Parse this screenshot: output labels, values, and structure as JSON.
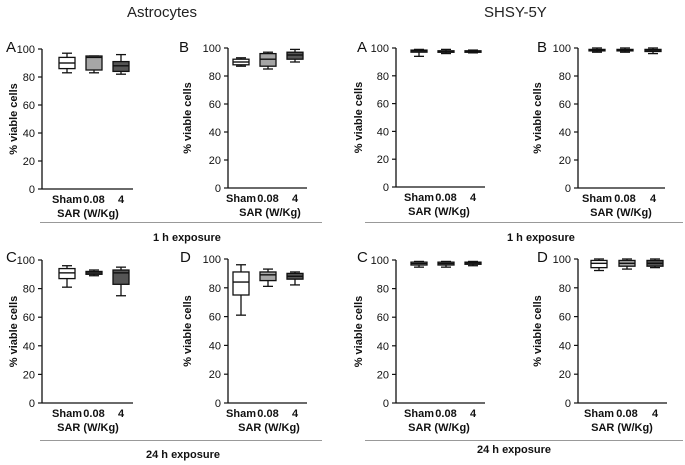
{
  "sections": {
    "left": "Astrocytes",
    "right": "SHSY-5Y"
  },
  "exposure_labels": {
    "top": "1 h exposure",
    "bottom": "24 h exposure"
  },
  "chart_data": [
    {
      "id": "astro-1h-A",
      "type": "boxplot",
      "panel_label": "A",
      "categories": [
        "Sham",
        "0.08",
        "4"
      ],
      "xlabel": "SAR (W/Kg)",
      "ylabel": "% viable cells",
      "ylim": [
        0,
        100
      ],
      "yticks": [
        0,
        20,
        40,
        60,
        80,
        100
      ],
      "fills": [
        "#ffffff",
        "#a6a6a6",
        "#555555"
      ],
      "boxes": [
        {
          "min": 83,
          "q1": 86,
          "median": 90,
          "q3": 94,
          "max": 97
        },
        {
          "min": 83,
          "q1": 85,
          "median": 94,
          "q3": 95,
          "max": 95
        },
        {
          "min": 82,
          "q1": 84,
          "median": 88,
          "q3": 91,
          "max": 96
        }
      ]
    },
    {
      "id": "astro-1h-B",
      "type": "boxplot",
      "panel_label": "B",
      "categories": [
        "Sham",
        "0.08",
        "4"
      ],
      "xlabel": "SAR (W/Kg)",
      "ylabel": "% viable cells",
      "ylim": [
        0,
        100
      ],
      "yticks": [
        0,
        20,
        40,
        60,
        80,
        100
      ],
      "fills": [
        "#ffffff",
        "#a6a6a6",
        "#555555"
      ],
      "boxes": [
        {
          "min": 87,
          "q1": 88,
          "median": 90,
          "q3": 92,
          "max": 93
        },
        {
          "min": 85,
          "q1": 87,
          "median": 92,
          "q3": 96,
          "max": 97
        },
        {
          "min": 90,
          "q1": 92,
          "median": 95,
          "q3": 97,
          "max": 99
        }
      ]
    },
    {
      "id": "shsy-1h-A",
      "type": "boxplot",
      "panel_label": "A",
      "categories": [
        "Sham",
        "0.08",
        "4"
      ],
      "xlabel": "SAR (W/Kg)",
      "ylabel": "% viable cells",
      "ylim": [
        0,
        100
      ],
      "yticks": [
        0,
        20,
        40,
        60,
        80,
        100
      ],
      "fills": [
        "#ffffff",
        "#a6a6a6",
        "#555555"
      ],
      "boxes": [
        {
          "min": 94,
          "q1": 97,
          "median": 98,
          "q3": 98.5,
          "max": 99
        },
        {
          "min": 96,
          "q1": 97,
          "median": 97.5,
          "q3": 98,
          "max": 99
        },
        {
          "min": 96.5,
          "q1": 97,
          "median": 97.5,
          "q3": 98,
          "max": 98.5
        }
      ]
    },
    {
      "id": "shsy-1h-B",
      "type": "boxplot",
      "panel_label": "B",
      "categories": [
        "Sham",
        "0.08",
        "4"
      ],
      "xlabel": "SAR (W/Kg)",
      "ylabel": "% viable cells",
      "ylim": [
        0,
        100
      ],
      "yticks": [
        0,
        20,
        40,
        60,
        80,
        100
      ],
      "fills": [
        "#ffffff",
        "#a6a6a6",
        "#555555"
      ],
      "boxes": [
        {
          "min": 97,
          "q1": 98,
          "median": 98.5,
          "q3": 99,
          "max": 100
        },
        {
          "min": 97,
          "q1": 98,
          "median": 98.5,
          "q3": 99,
          "max": 100
        },
        {
          "min": 96,
          "q1": 97.5,
          "median": 98.5,
          "q3": 99,
          "max": 100
        }
      ]
    },
    {
      "id": "astro-24h-C",
      "type": "boxplot",
      "panel_label": "C",
      "categories": [
        "Sham",
        "0.08",
        "4"
      ],
      "xlabel": "SAR (W/Kg)",
      "ylabel": "% viable cells",
      "ylim": [
        0,
        100
      ],
      "yticks": [
        0,
        20,
        40,
        60,
        80,
        100
      ],
      "fills": [
        "#ffffff",
        "#a6a6a6",
        "#555555"
      ],
      "boxes": [
        {
          "min": 81,
          "q1": 87,
          "median": 91,
          "q3": 94,
          "max": 96
        },
        {
          "min": 89,
          "q1": 90,
          "median": 91,
          "q3": 92,
          "max": 93
        },
        {
          "min": 75,
          "q1": 83,
          "median": 91,
          "q3": 93,
          "max": 95
        }
      ]
    },
    {
      "id": "astro-24h-D",
      "type": "boxplot",
      "panel_label": "D",
      "categories": [
        "Sham",
        "0.08",
        "4"
      ],
      "xlabel": "SAR (W/Kg)",
      "ylabel": "% viable cells",
      "ylim": [
        0,
        100
      ],
      "yticks": [
        0,
        20,
        40,
        60,
        80,
        100
      ],
      "fills": [
        "#ffffff",
        "#a6a6a6",
        "#555555"
      ],
      "boxes": [
        {
          "min": 61,
          "q1": 75,
          "median": 84,
          "q3": 91,
          "max": 96
        },
        {
          "min": 81,
          "q1": 85,
          "median": 89,
          "q3": 91,
          "max": 93
        },
        {
          "min": 82,
          "q1": 86,
          "median": 88,
          "q3": 90,
          "max": 91
        }
      ]
    },
    {
      "id": "shsy-24h-C",
      "type": "boxplot",
      "panel_label": "C",
      "categories": [
        "Sham",
        "0.08",
        "4"
      ],
      "xlabel": "SAR (W/Kg)",
      "ylabel": "% viable cells",
      "ylim": [
        0,
        100
      ],
      "yticks": [
        0,
        20,
        40,
        60,
        80,
        100
      ],
      "fills": [
        "#ffffff",
        "#a6a6a6",
        "#555555"
      ],
      "boxes": [
        {
          "min": 95,
          "q1": 96.5,
          "median": 97.5,
          "q3": 98.5,
          "max": 99
        },
        {
          "min": 95,
          "q1": 96.5,
          "median": 97.5,
          "q3": 98.5,
          "max": 99
        },
        {
          "min": 96,
          "q1": 97,
          "median": 98,
          "q3": 98.5,
          "max": 99
        }
      ]
    },
    {
      "id": "shsy-24h-D",
      "type": "boxplot",
      "panel_label": "D",
      "categories": [
        "Sham",
        "0.08",
        "4"
      ],
      "xlabel": "SAR (W/Kg)",
      "ylabel": "% viable cells",
      "ylim": [
        0,
        100
      ],
      "yticks": [
        0,
        20,
        40,
        60,
        80,
        100
      ],
      "fills": [
        "#ffffff",
        "#a6a6a6",
        "#555555"
      ],
      "boxes": [
        {
          "min": 92,
          "q1": 94,
          "median": 97,
          "q3": 99,
          "max": 100
        },
        {
          "min": 93,
          "q1": 95,
          "median": 97,
          "q3": 99,
          "max": 100
        },
        {
          "min": 94,
          "q1": 95,
          "median": 97,
          "q3": 99,
          "max": 100
        }
      ]
    }
  ]
}
